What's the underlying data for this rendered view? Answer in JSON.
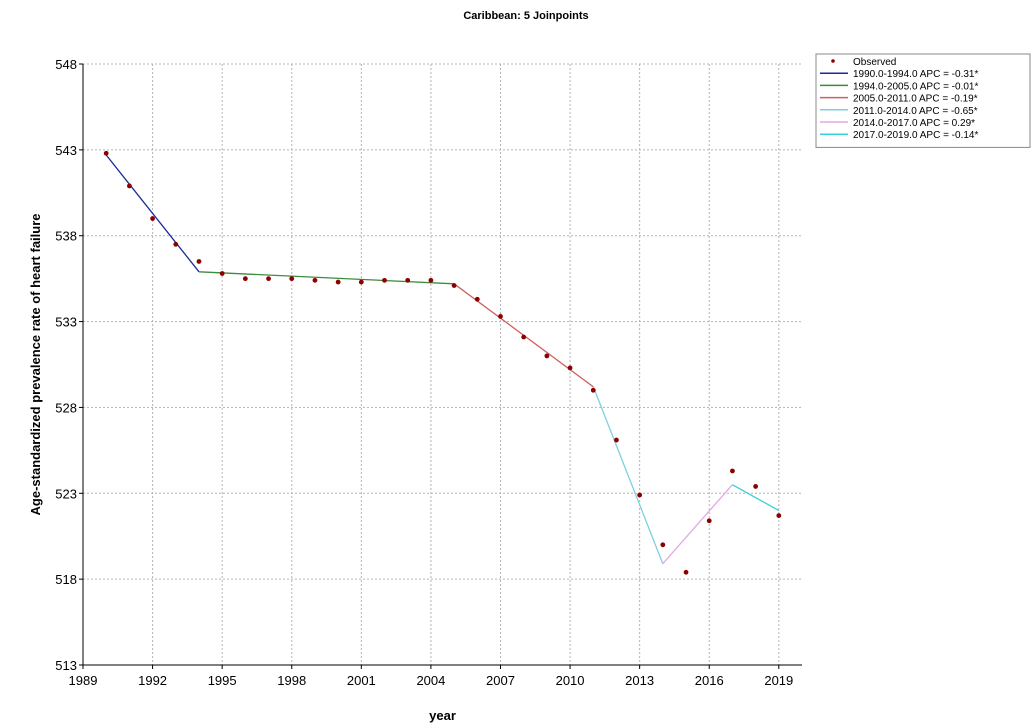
{
  "chart_data": {
    "type": "line",
    "title": "Caribbean: 5 Joinpoints",
    "xlabel": "year",
    "ylabel": "Age-standardized prevalence rate of heart failure",
    "xlim": [
      1989,
      1990,
      2020
    ],
    "x_ticks": [
      "1989",
      "1992",
      "1995",
      "1998",
      "2001",
      "2004",
      "2007",
      "2010",
      "2013",
      "2016",
      "2019"
    ],
    "ylim": [
      513,
      548
    ],
    "y_ticks": [
      "513",
      "518",
      "523",
      "528",
      "533",
      "538",
      "543",
      "548"
    ],
    "grid": true,
    "legend_position": "top-right",
    "observed": {
      "name": "Observed",
      "color": "#8b0000",
      "x": [
        1990,
        1991,
        1992,
        1993,
        1994,
        1995,
        1996,
        1997,
        1998,
        1999,
        2000,
        2001,
        2002,
        2003,
        2004,
        2005,
        2006,
        2007,
        2008,
        2009,
        2010,
        2011,
        2012,
        2013,
        2014,
        2015,
        2016,
        2017,
        2018,
        2019
      ],
      "y": [
        542.8,
        540.9,
        539.0,
        537.5,
        536.5,
        535.8,
        535.5,
        535.5,
        535.5,
        535.4,
        535.3,
        535.3,
        535.4,
        535.4,
        535.4,
        535.1,
        534.3,
        533.3,
        532.1,
        531.0,
        530.3,
        529.0,
        526.1,
        522.9,
        520.0,
        518.4,
        521.4,
        524.3,
        523.4,
        521.7
      ]
    },
    "series": [
      {
        "name": "1990.0-1994.0 APC = -0.31*",
        "color": "#1a2a9a",
        "x": [
          1990,
          1994
        ],
        "y": [
          542.7,
          535.9
        ]
      },
      {
        "name": "1994.0-2005.0 APC = -0.01*",
        "color": "#3c8c3c",
        "x": [
          1994,
          2005
        ],
        "y": [
          535.9,
          535.2
        ]
      },
      {
        "name": "2005.0-2011.0 APC = -0.19*",
        "color": "#d06060",
        "x": [
          2005,
          2011
        ],
        "y": [
          535.2,
          529.2
        ]
      },
      {
        "name": "2011.0-2014.0 APC = -0.65*",
        "color": "#7ecfe0",
        "x": [
          2011,
          2014
        ],
        "y": [
          529.2,
          518.9
        ]
      },
      {
        "name": "2014.0-2017.0 APC =  0.29*",
        "color": "#e4a8e4",
        "x": [
          2014,
          2017
        ],
        "y": [
          518.9,
          523.5
        ]
      },
      {
        "name": "2017.0-2019.0 APC = -0.14*",
        "color": "#3ad0d8",
        "x": [
          2017,
          2019
        ],
        "y": [
          523.5,
          522.0
        ]
      }
    ]
  }
}
